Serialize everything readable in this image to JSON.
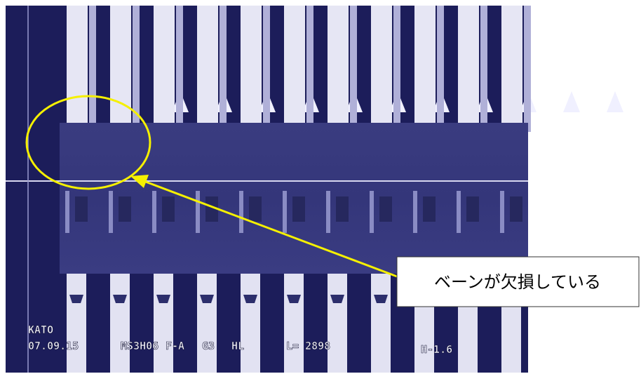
{
  "overlay": {
    "operator": "KATO",
    "date": "07.09.15",
    "model": "MS3H06",
    "mode": "F-A",
    "gain": "G3",
    "light": "HL",
    "length": "L= 2898",
    "height": "H-1.6"
  },
  "callout": {
    "text": "ベーンが欠損している"
  }
}
